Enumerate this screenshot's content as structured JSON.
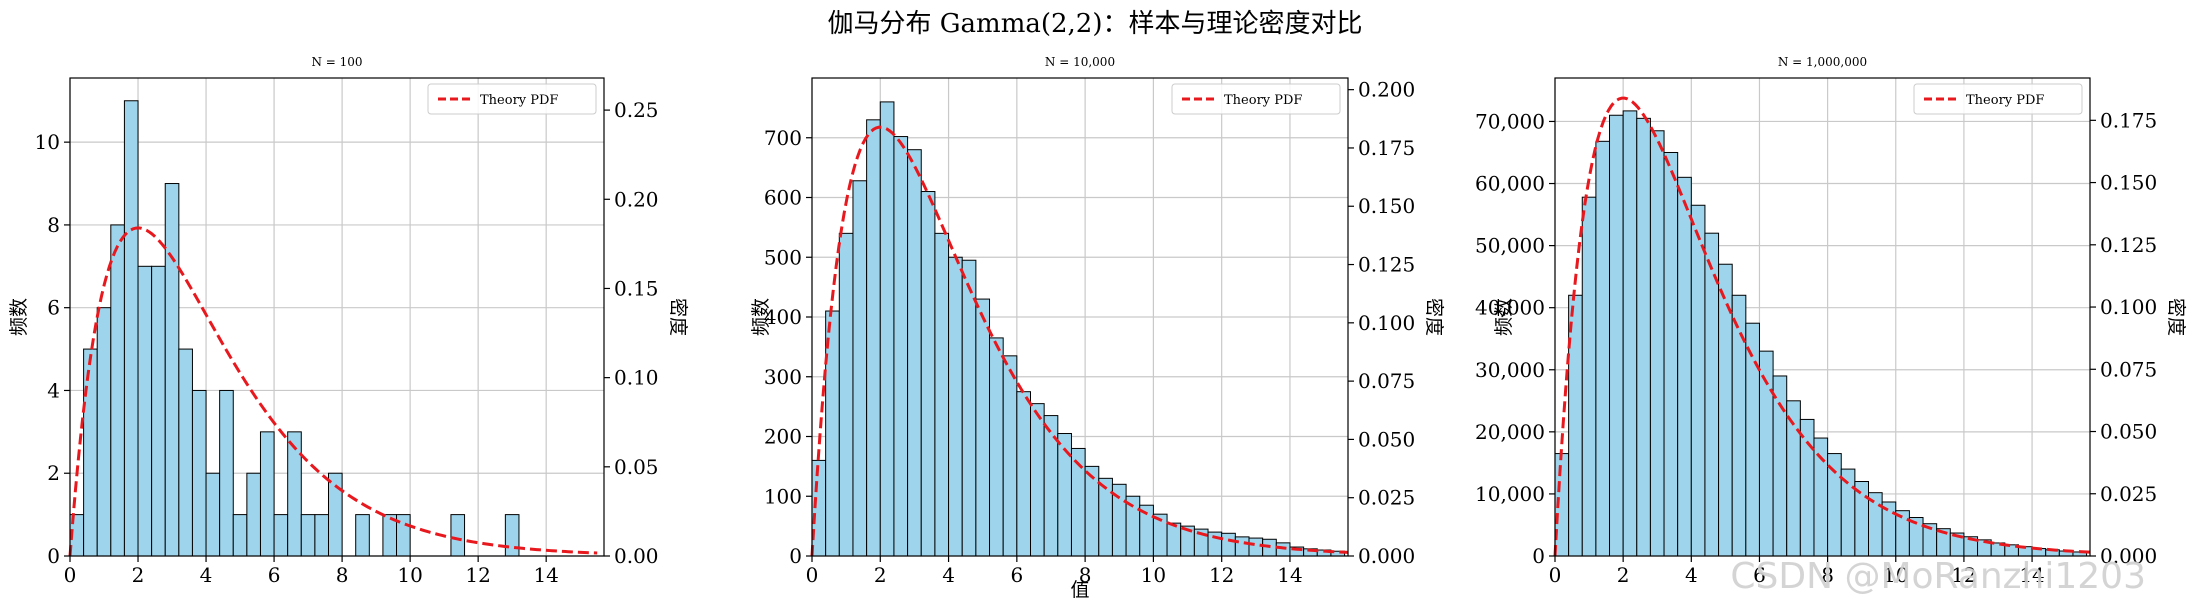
{
  "figure": {
    "title": "伽马分布 Gamma(2,2)：样本与理论密度对比",
    "watermark": "CSDN @MoRanzhi1203",
    "x_shared_label": "值"
  },
  "colors": {
    "bar_fill": "#9fd5ec",
    "bar_edge": "#000000",
    "pdf_line": "#e8191e",
    "grid": "#c9c9c9"
  },
  "chart_data": [
    {
      "type": "bar",
      "title": "N = 100",
      "xlabel": "",
      "ylabel": "频数",
      "y2label": "密度",
      "legend": {
        "label": "Theory PDF",
        "placement": "top-right"
      },
      "grid": true,
      "xlim": [
        0,
        15.7
      ],
      "ylim": [
        0,
        11.55
      ],
      "y2lim": [
        0,
        0.268
      ],
      "x_ticks": [
        0,
        2,
        4,
        6,
        8,
        10,
        12,
        14
      ],
      "x_tick_labels": [
        "0",
        "2",
        "4",
        "6",
        "8",
        "10",
        "12",
        "14"
      ],
      "y_ticks": [
        0,
        2,
        4,
        6,
        8,
        10
      ],
      "y_tick_labels": [
        "0",
        "2",
        "4",
        "6",
        "8",
        "10"
      ],
      "y2_ticks": [
        0,
        0.05,
        0.1,
        0.15,
        0.2,
        0.25
      ],
      "y2_tick_labels": [
        "0.00",
        "0.05",
        "0.10",
        "0.15",
        "0.20",
        "0.25"
      ],
      "bin_start": 0,
      "bin_width": 0.4,
      "counts": [
        1,
        5,
        6,
        8,
        11,
        7,
        7,
        9,
        5,
        4,
        2,
        4,
        1,
        2,
        3,
        1,
        3,
        1,
        1,
        2,
        0,
        1,
        0,
        1,
        1,
        0,
        0,
        0,
        1,
        0,
        0,
        0,
        1
      ],
      "pdf": {
        "k": 2,
        "theta": 2,
        "x_max": 15.5
      }
    },
    {
      "type": "bar",
      "title": "N = 10,000",
      "xlabel": "值",
      "ylabel": "频数",
      "y2label": "密度",
      "legend": {
        "label": "Theory PDF",
        "placement": "top-right"
      },
      "grid": true,
      "xlim": [
        0,
        15.7
      ],
      "ylim": [
        0,
        800
      ],
      "y2lim": [
        0,
        0.205
      ],
      "x_ticks": [
        0,
        2,
        4,
        6,
        8,
        10,
        12,
        14
      ],
      "x_tick_labels": [
        "0",
        "2",
        "4",
        "6",
        "8",
        "10",
        "12",
        "14"
      ],
      "y_ticks": [
        0,
        100,
        200,
        300,
        400,
        500,
        600,
        700
      ],
      "y_tick_labels": [
        "0",
        "100",
        "200",
        "300",
        "400",
        "500",
        "600",
        "700"
      ],
      "y2_ticks": [
        0,
        0.025,
        0.05,
        0.075,
        0.1,
        0.125,
        0.15,
        0.175,
        0.2
      ],
      "y2_tick_labels": [
        "0.000",
        "0.025",
        "0.050",
        "0.075",
        "0.100",
        "0.125",
        "0.150",
        "0.175",
        "0.200"
      ],
      "bin_start": 0,
      "bin_width": 0.4,
      "counts": [
        160,
        410,
        540,
        628,
        730,
        760,
        702,
        680,
        610,
        540,
        500,
        495,
        430,
        365,
        335,
        275,
        255,
        235,
        205,
        180,
        150,
        130,
        120,
        100,
        85,
        70,
        55,
        50,
        45,
        40,
        38,
        32,
        30,
        28,
        22,
        15,
        12,
        10,
        8
      ],
      "pdf": {
        "k": 2,
        "theta": 2,
        "x_max": 15.7
      }
    },
    {
      "type": "bar",
      "title": "N = 1,000,000",
      "xlabel": "",
      "ylabel": "频数",
      "y2label": "密度",
      "legend": {
        "label": "Theory PDF",
        "placement": "top-right"
      },
      "grid": true,
      "xlim": [
        0,
        15.7
      ],
      "ylim": [
        0,
        77000
      ],
      "y2lim": [
        0,
        0.192
      ],
      "x_ticks": [
        0,
        2,
        4,
        6,
        8,
        10,
        12,
        14
      ],
      "x_tick_labels": [
        "0",
        "2",
        "4",
        "6",
        "8",
        "10",
        "12",
        "14"
      ],
      "y_ticks": [
        0,
        10000,
        20000,
        30000,
        40000,
        50000,
        60000,
        70000
      ],
      "y_tick_labels": [
        "0",
        "10,000",
        "20,000",
        "30,000",
        "40,000",
        "50,000",
        "60,000",
        "70,000"
      ],
      "y2_ticks": [
        0,
        0.025,
        0.05,
        0.075,
        0.1,
        0.125,
        0.15,
        0.175
      ],
      "y2_tick_labels": [
        "0.000",
        "0.025",
        "0.050",
        "0.075",
        "0.100",
        "0.125",
        "0.150",
        "0.175"
      ],
      "bin_start": 0,
      "bin_width": 0.4,
      "counts": [
        16500,
        42000,
        57800,
        66800,
        71000,
        71700,
        70500,
        68500,
        65000,
        61000,
        56500,
        52000,
        47000,
        42000,
        37500,
        33000,
        29000,
        25000,
        22000,
        19000,
        16500,
        14000,
        12000,
        10200,
        8700,
        7300,
        6200,
        5200,
        4400,
        3700,
        3100,
        2600,
        2100,
        1800,
        1500,
        1200,
        1000,
        800,
        650
      ],
      "pdf": {
        "k": 2,
        "theta": 2,
        "x_max": 15.7
      }
    }
  ]
}
